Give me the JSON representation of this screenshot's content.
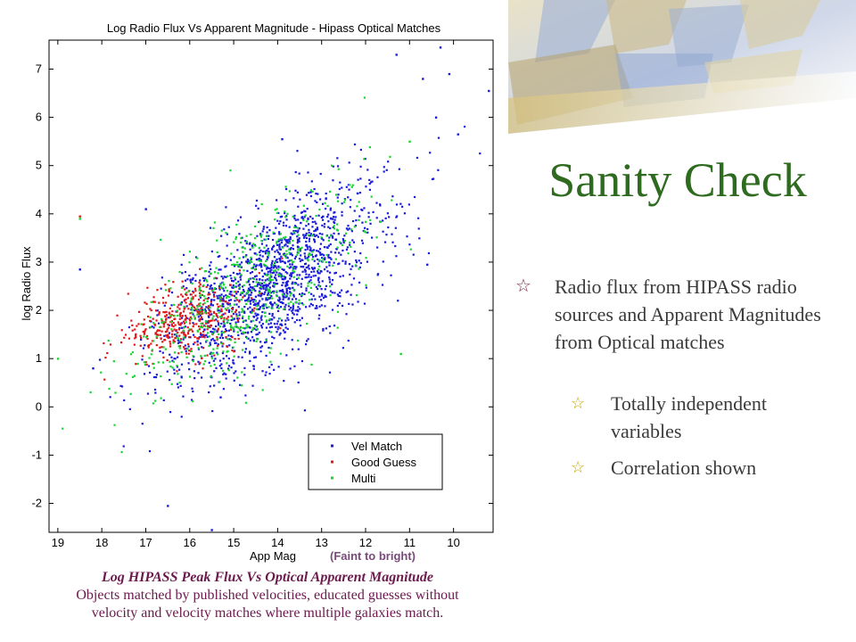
{
  "slide": {
    "title": "Sanity Check",
    "bullets": [
      {
        "level": 1,
        "text": "Radio flux from HIPASS radio sources and Apparent Magnitudes from Optical matches",
        "icon": "star-outline-icon"
      },
      {
        "level": 2,
        "text": "Totally independent variables",
        "icon": "star-outline-icon"
      },
      {
        "level": 2,
        "text": "Correlation shown",
        "icon": "star-outline-icon"
      }
    ],
    "caption": {
      "title": "Log HIPASS Peak Flux Vs Optical Apparent Magnitude",
      "line1": "Objects matched by published velocities, educated guesses without",
      "line2": "velocity and velocity matches where multiple galaxies match."
    },
    "colors": {
      "title": "#2e6b1f",
      "caption": "#6b1a4d",
      "bullet_icon": "#7a1f3d"
    }
  },
  "chart_data": {
    "type": "scatter",
    "title": "Log Radio Flux Vs  Apparent Magnitude - Hipass Optical Matches",
    "xlabel": "App Mag",
    "xlabel_note": "(Faint to bright)",
    "ylabel": "log Radio Flux",
    "xlim": [
      19.2,
      9.1
    ],
    "ylim": [
      -2.6,
      7.6
    ],
    "x_reversed": true,
    "xticks": [
      19,
      18,
      17,
      16,
      15,
      14,
      13,
      12,
      11,
      10
    ],
    "yticks": [
      -2,
      -1,
      0,
      1,
      2,
      3,
      4,
      5,
      6,
      7
    ],
    "legend_position": "bottom-right",
    "series": [
      {
        "name": "Vel Match",
        "color": "#1a1adb",
        "count": 1500,
        "center": [
          14.1,
          2.55
        ],
        "spread": [
          1.25,
          0.75
        ],
        "slope": -0.55
      },
      {
        "name": "Good Guess",
        "color": "#e01818",
        "count": 400,
        "center": [
          16.1,
          1.8
        ],
        "spread": [
          0.65,
          0.4
        ],
        "slope": -0.2
      },
      {
        "name": "Multi",
        "color": "#18d630",
        "count": 550,
        "center": [
          14.6,
          2.45
        ],
        "spread": [
          1.3,
          0.75
        ],
        "slope": -0.5
      }
    ],
    "outliers": [
      {
        "series": "Vel Match",
        "x": 16.5,
        "y": -2.05
      },
      {
        "series": "Vel Match",
        "x": 15.5,
        "y": -2.55
      },
      {
        "series": "Vel Match",
        "x": 11.3,
        "y": 7.3
      },
      {
        "series": "Vel Match",
        "x": 10.3,
        "y": 7.45
      },
      {
        "series": "Vel Match",
        "x": 9.2,
        "y": 6.55
      },
      {
        "series": "Vel Match",
        "x": 10.7,
        "y": 6.8
      },
      {
        "series": "Vel Match",
        "x": 10.4,
        "y": 6.0
      },
      {
        "series": "Vel Match",
        "x": 10.1,
        "y": 6.9
      },
      {
        "series": "Vel Match",
        "x": 9.9,
        "y": 5.65
      },
      {
        "series": "Vel Match",
        "x": 10.6,
        "y": 2.95
      },
      {
        "series": "Vel Match",
        "x": 18.5,
        "y": 2.85
      },
      {
        "series": "Vel Match",
        "x": 18.2,
        "y": 0.8
      },
      {
        "series": "Vel Match",
        "x": 15.3,
        "y": 0.2
      },
      {
        "series": "Vel Match",
        "x": 17.0,
        "y": 4.1
      },
      {
        "series": "Vel Match",
        "x": 13.9,
        "y": 5.55
      },
      {
        "series": "Good Guess",
        "x": 18.5,
        "y": 3.95
      },
      {
        "series": "Multi",
        "x": 18.5,
        "y": 3.9
      },
      {
        "series": "Multi",
        "x": 19.0,
        "y": 1.0
      },
      {
        "series": "Multi",
        "x": 11.0,
        "y": 5.5
      },
      {
        "series": "Multi",
        "x": 11.2,
        "y": 1.1
      }
    ]
  }
}
